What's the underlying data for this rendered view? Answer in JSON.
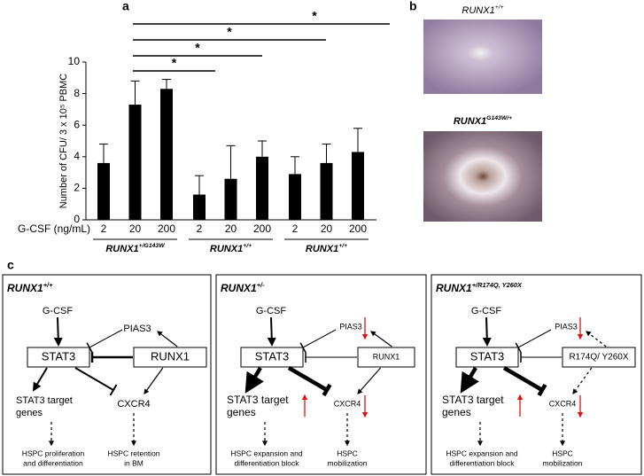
{
  "panel_labels": [
    "a",
    "b",
    "c"
  ],
  "chart_data": {
    "type": "bar",
    "y_label": "Number of CFU/ 3 x 10⁵ PBMC",
    "x_label": "G-CSF (ng/mL)",
    "categories": [
      "2",
      "20",
      "200",
      "2",
      "20",
      "200",
      "2",
      "20",
      "200"
    ],
    "groups": [
      {
        "name": "RUNX1",
        "sup": "+/G143W"
      },
      {
        "name": "RUNX1",
        "sup": "+/+"
      },
      {
        "name": "RUNX1",
        "sup": "+/+"
      }
    ],
    "values": [
      3.6,
      7.3,
      8.3,
      1.6,
      2.6,
      4.0,
      2.9,
      3.6,
      4.3
    ],
    "errors": [
      1.2,
      1.5,
      0.6,
      1.2,
      2.1,
      1.0,
      1.1,
      1.2,
      1.5
    ],
    "color": "#000000",
    "ylim": [
      0,
      10
    ],
    "yticks": [
      0,
      2,
      4,
      6,
      8,
      10
    ],
    "significance": [
      "*",
      "*",
      "*",
      "*"
    ]
  },
  "micrographs": [
    {
      "name": "RUNX1",
      "sup": "+/+"
    },
    {
      "name": "RUNX1",
      "sup": "G143W/+"
    }
  ],
  "diagrams": [
    {
      "title": {
        "name": "RUNX1",
        "sup": "+/+"
      },
      "g_csf": "G-CSF",
      "pias3": "PIAS3",
      "stat3": "STAT3",
      "regulator": "RUNX1",
      "targets": [
        "STAT3 target",
        "genes"
      ],
      "cxcr4": "CXCR4",
      "outcome_left": [
        "HSPC proliferation",
        "and differentiation"
      ],
      "outcome_right": [
        "HSPC retention",
        "in BM"
      ],
      "outcome_color": "#1f1fd6"
    },
    {
      "title": {
        "name": "RUNX1",
        "sup": "+/-"
      },
      "g_csf": "G-CSF",
      "pias3": "PIAS3",
      "stat3": "STAT3",
      "regulator": "RUNX1",
      "targets": [
        "STAT3 target",
        "genes"
      ],
      "cxcr4": "CXCR4",
      "outcome_left": [
        "HSPC expansion and",
        "differentiation block"
      ],
      "outcome_right": [
        "HSPC",
        "mobilization"
      ],
      "outcome_color": "#e01010"
    },
    {
      "title": {
        "name": "RUNX1",
        "sup": "+/R174Q, Y260X"
      },
      "g_csf": "G-CSF",
      "pias3": "PIAS3",
      "stat3": "STAT3",
      "regulator": "R174Q/  Y260X",
      "targets": [
        "STAT3 target",
        "genes"
      ],
      "cxcr4": "CXCR4",
      "outcome_left": [
        "HSPC expansion and",
        "differentiation block"
      ],
      "outcome_right": [
        "HSPC",
        "mobilization"
      ],
      "outcome_color": "#e01010"
    }
  ]
}
